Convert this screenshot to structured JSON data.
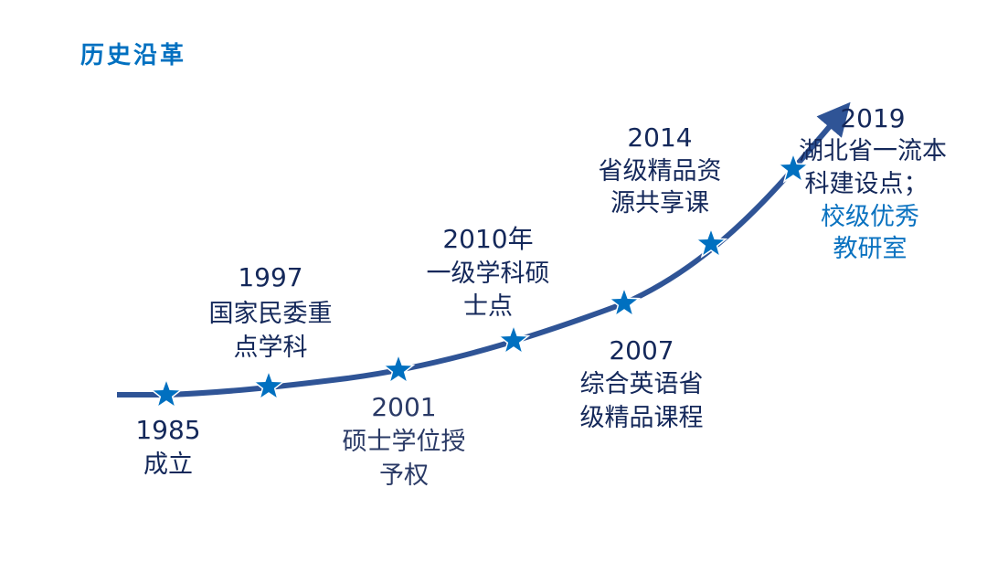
{
  "title": "历史沿革",
  "colors": {
    "line": "#2f5496",
    "star": "#0070c0",
    "text": "#14285a",
    "accent": "#0070c0"
  },
  "milestones": [
    {
      "year": "1985",
      "lines": [
        "成立"
      ]
    },
    {
      "year": "1997",
      "lines": [
        "国家民委重",
        "点学科"
      ]
    },
    {
      "year": "2001",
      "lines": [
        "硕士学位授",
        "予权"
      ]
    },
    {
      "year": "2010年",
      "lines": [
        "一级学科硕",
        "士点"
      ]
    },
    {
      "year": "2007",
      "lines": [
        "综合英语省",
        "级精品课程"
      ]
    },
    {
      "year": "2014",
      "lines": [
        "省级精品资",
        "源共享课"
      ]
    },
    {
      "year": "2019",
      "lines": [
        "湖北省一流本",
        "科建设点；"
      ],
      "accent_lines": [
        "校级优秀",
        "教研室"
      ]
    }
  ]
}
